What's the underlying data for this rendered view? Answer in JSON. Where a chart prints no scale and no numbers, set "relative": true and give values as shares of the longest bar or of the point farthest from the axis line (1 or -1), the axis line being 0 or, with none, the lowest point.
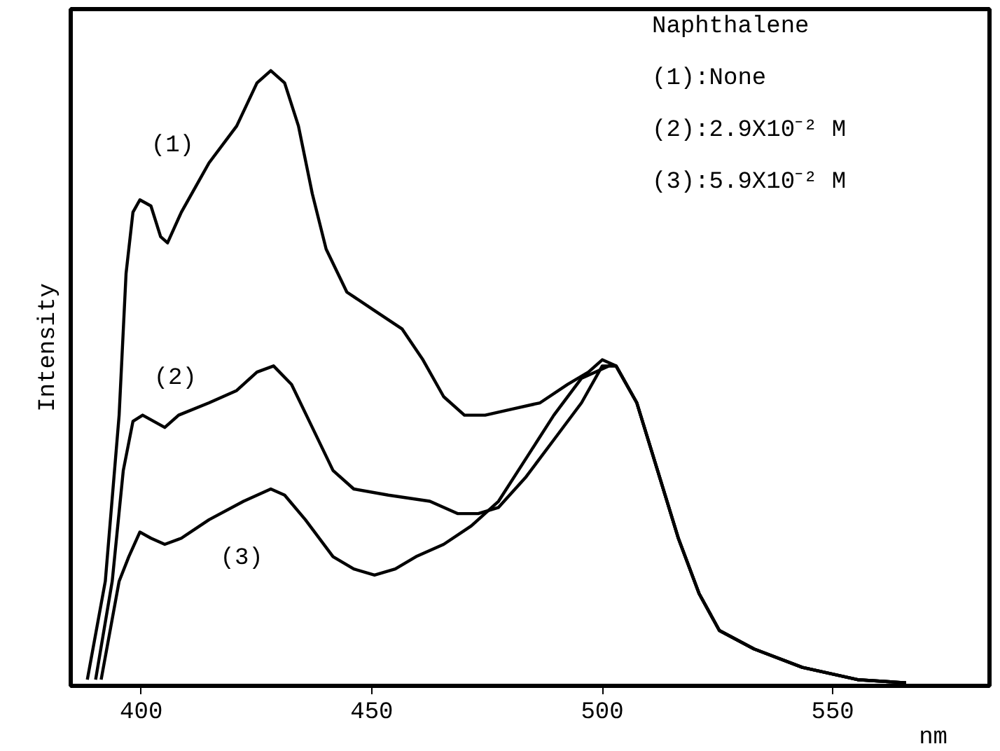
{
  "chart_data": {
    "type": "line",
    "relative": true,
    "xlabel": "nm",
    "ylabel": "Intensity",
    "xlim": [
      384.7,
      584
    ],
    "xticks": [
      400,
      450,
      500,
      550
    ],
    "tick_labels": "x",
    "grid": false,
    "legend": false,
    "marker": "none",
    "line_style": "solid",
    "annotations": [
      "Naphthalene",
      "(1):None",
      "(2):2.9X10⁻² M",
      "(3):5.9X10⁻² M"
    ],
    "series": [
      {
        "name": "(1)",
        "color": "#000000",
        "x": [
          388.3,
          392.2,
          395.2,
          396.7,
          398.2,
          399.7,
          402.1,
          404.2,
          405.7,
          408.7,
          414.7,
          420.7,
          425.1,
          428.1,
          431.1,
          434.1,
          437.1,
          440.1,
          444.6,
          450.6,
          456.6,
          461.1,
          465.6,
          470.1,
          474.6,
          480.5,
          486.5,
          492.5,
          497,
          500,
          503,
          507.5,
          512,
          516.5,
          521,
          525.4,
          532.9,
          543.4,
          555.4,
          565.9
        ],
        "values": [
          0.01,
          0.17,
          0.44,
          0.67,
          0.77,
          0.79,
          0.78,
          0.73,
          0.72,
          0.77,
          0.85,
          0.91,
          0.98,
          1,
          0.98,
          0.91,
          0.8,
          0.71,
          0.64,
          0.61,
          0.58,
          0.53,
          0.47,
          0.44,
          0.44,
          0.45,
          0.46,
          0.49,
          0.51,
          0.53,
          0.52,
          0.46,
          0.35,
          0.24,
          0.15,
          0.09,
          0.06,
          0.03,
          0.01,
          0.005
        ]
      },
      {
        "name": "(2)",
        "color": "#000000",
        "x": [
          390.1,
          393.7,
          396.1,
          398.2,
          400.3,
          402.7,
          405.1,
          408.1,
          414.7,
          420.7,
          425.1,
          428.7,
          432.6,
          437.1,
          441.6,
          446.1,
          453.6,
          462.6,
          468.6,
          473.1,
          477.5,
          483.5,
          489.5,
          495.5,
          500,
          503,
          507.5,
          512,
          516.5,
          521,
          525.4,
          532.9,
          543.4,
          555.4,
          565.9
        ],
        "values": [
          0.01,
          0.17,
          0.35,
          0.43,
          0.44,
          0.43,
          0.42,
          0.44,
          0.46,
          0.48,
          0.51,
          0.52,
          0.49,
          0.42,
          0.35,
          0.32,
          0.31,
          0.3,
          0.28,
          0.28,
          0.29,
          0.34,
          0.4,
          0.46,
          0.52,
          0.52,
          0.46,
          0.35,
          0.24,
          0.15,
          0.09,
          0.06,
          0.03,
          0.01,
          0.005
        ]
      },
      {
        "name": "(3)",
        "color": "#000000",
        "x": [
          391.3,
          395.2,
          397.3,
          399.7,
          402.1,
          405.1,
          408.7,
          414.7,
          422.2,
          428.1,
          431.1,
          435.6,
          441.6,
          446.1,
          450.6,
          455.1,
          459.6,
          465.6,
          471.6,
          477.5,
          483.5,
          489.5,
          495.5,
          501.5,
          503,
          507.5,
          512,
          516.5,
          521,
          525.4,
          532.9,
          543.4,
          555.4,
          565.9
        ],
        "values": [
          0.01,
          0.17,
          0.21,
          0.25,
          0.24,
          0.23,
          0.24,
          0.27,
          0.3,
          0.32,
          0.31,
          0.27,
          0.21,
          0.19,
          0.18,
          0.19,
          0.21,
          0.23,
          0.26,
          0.3,
          0.37,
          0.44,
          0.5,
          0.52,
          0.52,
          0.46,
          0.35,
          0.24,
          0.15,
          0.09,
          0.06,
          0.03,
          0.01,
          0.005
        ]
      }
    ]
  }
}
